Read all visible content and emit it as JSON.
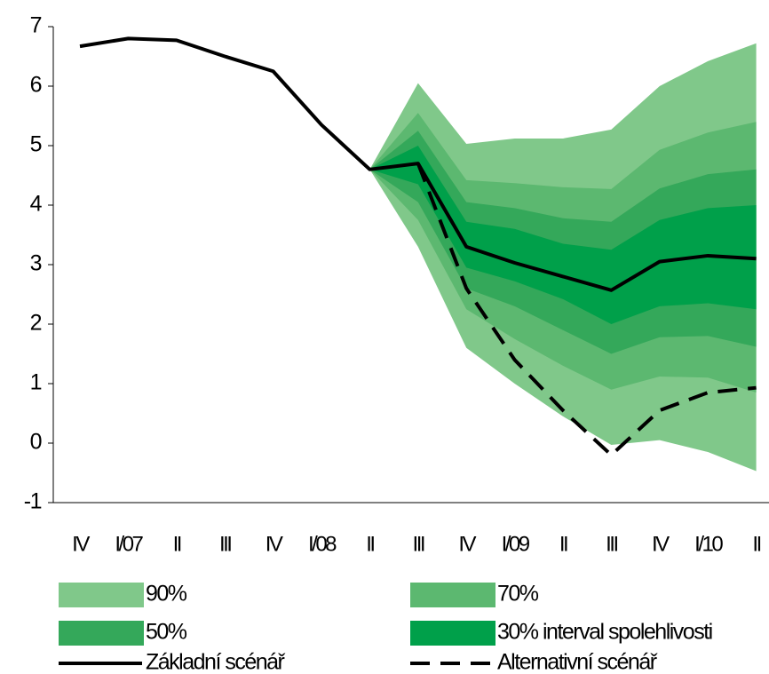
{
  "chart_data": {
    "type": "fan",
    "categories": [
      "IV",
      "I/07",
      "II",
      "III",
      "IV",
      "I/08",
      "II",
      "III",
      "IV",
      "I/09",
      "II",
      "III",
      "IV",
      "I/10",
      "II"
    ],
    "ylim": [
      -1,
      7
    ],
    "yticks": [
      -1,
      0,
      1,
      2,
      3,
      4,
      5,
      6,
      7
    ],
    "bands": [
      {
        "name": "90%",
        "color": "#80c88a",
        "upper": [
          null,
          null,
          null,
          null,
          null,
          null,
          4.6,
          6.05,
          5.03,
          5.12,
          5.12,
          5.27,
          6.0,
          6.42,
          6.72
        ],
        "lower": [
          null,
          null,
          null,
          null,
          null,
          null,
          4.6,
          3.3,
          1.6,
          1.0,
          0.45,
          -0.03,
          0.05,
          -0.15,
          -0.47
        ]
      },
      {
        "name": "70%",
        "color": "#5cb870",
        "upper": [
          null,
          null,
          null,
          null,
          null,
          null,
          4.6,
          5.55,
          4.42,
          4.37,
          4.3,
          4.27,
          4.93,
          5.22,
          5.4
        ],
        "lower": [
          null,
          null,
          null,
          null,
          null,
          null,
          4.6,
          3.75,
          2.25,
          1.75,
          1.3,
          0.9,
          1.12,
          1.1,
          0.85
        ]
      },
      {
        "name": "50%",
        "color": "#34a85a",
        "upper": [
          null,
          null,
          null,
          null,
          null,
          null,
          4.6,
          5.25,
          4.05,
          3.95,
          3.78,
          3.72,
          4.28,
          4.52,
          4.6
        ],
        "lower": [
          null,
          null,
          null,
          null,
          null,
          null,
          4.6,
          4.05,
          2.6,
          2.3,
          1.9,
          1.5,
          1.78,
          1.8,
          1.62
        ]
      },
      {
        "name": "30% interval spolehlivosti",
        "color": "#00a04a",
        "upper": [
          null,
          null,
          null,
          null,
          null,
          null,
          4.6,
          5.0,
          3.72,
          3.6,
          3.35,
          3.25,
          3.75,
          3.95,
          4.0
        ],
        "lower": [
          null,
          null,
          null,
          null,
          null,
          null,
          4.6,
          4.35,
          2.95,
          2.72,
          2.42,
          2.0,
          2.3,
          2.35,
          2.25
        ]
      }
    ],
    "series": [
      {
        "name": "Základní scénář",
        "color": "#000000",
        "dash": false,
        "values": [
          6.67,
          6.8,
          6.77,
          6.5,
          6.25,
          5.35,
          4.6,
          4.7,
          3.3,
          3.03,
          2.8,
          2.57,
          3.05,
          3.15,
          3.1
        ]
      },
      {
        "name": "Alternativní scénář",
        "color": "#000000",
        "dash": true,
        "values": [
          null,
          null,
          null,
          null,
          null,
          null,
          null,
          4.7,
          2.6,
          1.4,
          0.55,
          -0.2,
          0.55,
          0.85,
          0.93
        ]
      }
    ]
  }
}
